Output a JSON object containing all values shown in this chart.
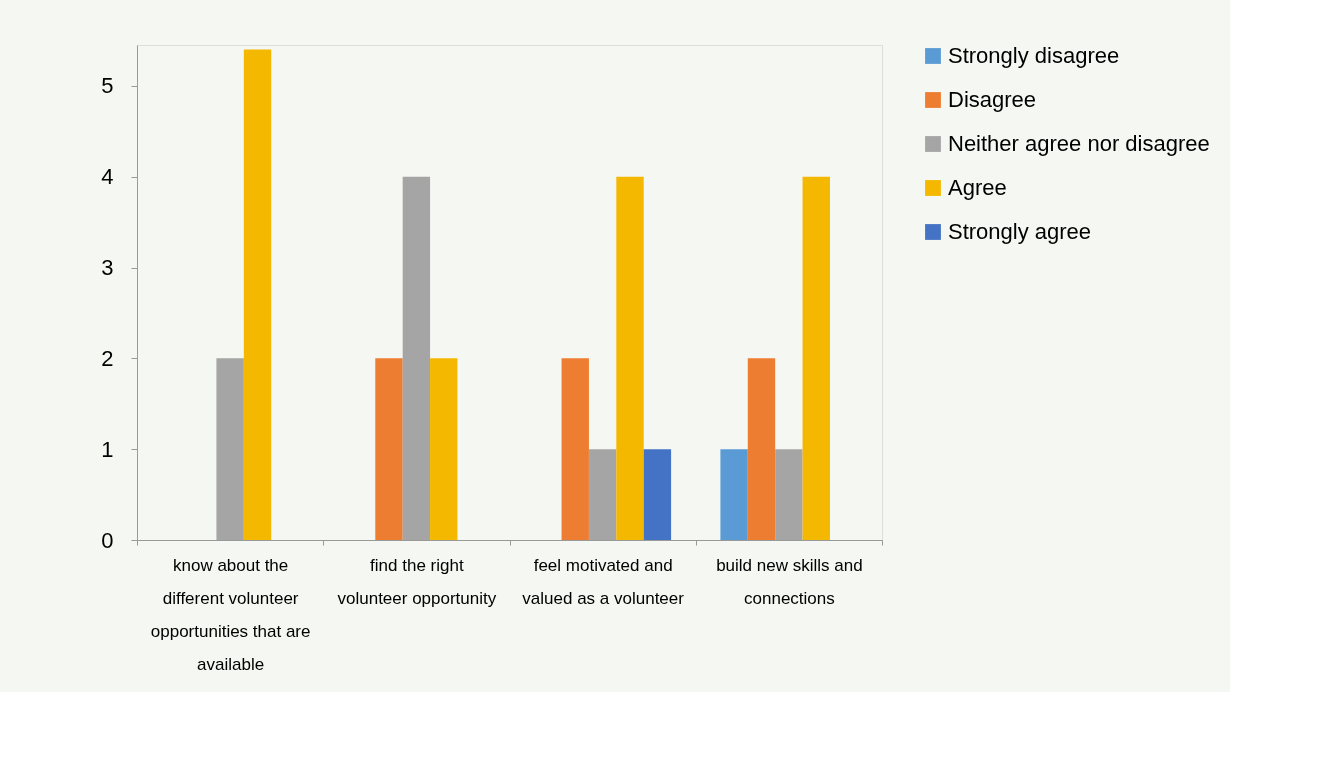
{
  "chart_data": {
    "type": "bar",
    "categories": [
      "know about the different volunteer opportunities that are available",
      "find the right volunteer opportunity",
      "feel motivated and valued as a volunteer",
      "build new skills and connections"
    ],
    "series": [
      {
        "name": "Strongly disagree",
        "color": "#5b9bd5",
        "values": [
          null,
          null,
          null,
          1
        ]
      },
      {
        "name": "Disagree",
        "color": "#ed7d31",
        "values": [
          null,
          2,
          2,
          2
        ]
      },
      {
        "name": "Neither agree nor disagree",
        "color": "#a5a5a5",
        "values": [
          2,
          4,
          1,
          1
        ]
      },
      {
        "name": "Agree",
        "color": "#f4b800",
        "values": [
          5.4,
          2,
          4,
          4
        ]
      },
      {
        "name": "Strongly agree",
        "color": "#4472c4",
        "values": [
          null,
          null,
          1,
          null
        ]
      }
    ],
    "ylim": [
      0,
      5.45
    ],
    "yticks": [
      0,
      1,
      2,
      3,
      4,
      5
    ],
    "grid": false,
    "legend": "right"
  }
}
